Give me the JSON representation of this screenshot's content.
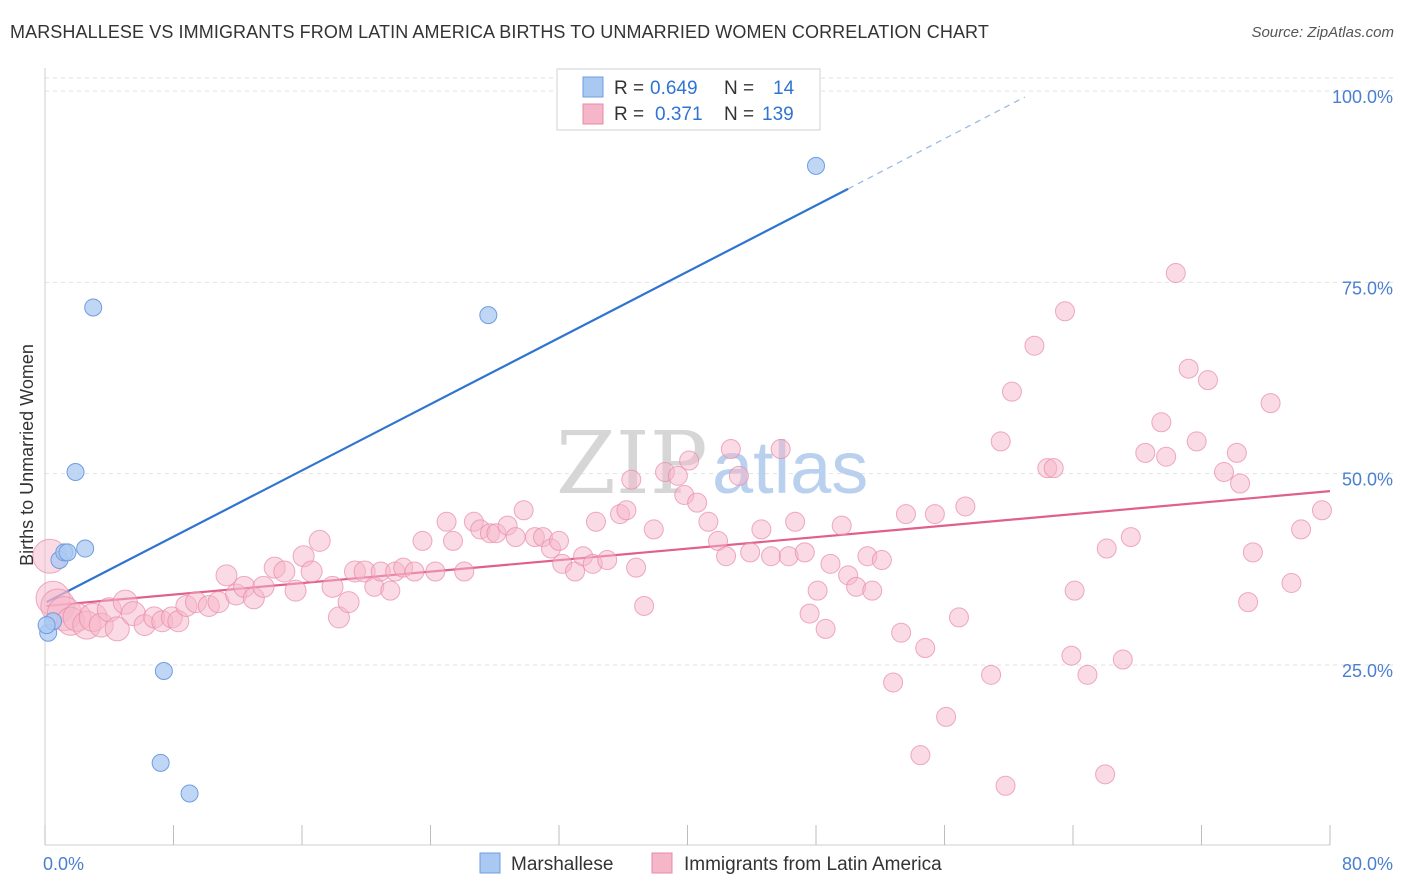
{
  "title": "MARSHALLESE VS IMMIGRANTS FROM LATIN AMERICA BIRTHS TO UNMARRIED WOMEN CORRELATION CHART",
  "source": "Source: ZipAtlas.com",
  "watermark": {
    "zip": "ZIP",
    "atlas": "atlas"
  },
  "colors": {
    "blue": "#a9c8f2",
    "blue_stroke": "#6f9de0",
    "blue_line": "#2f74d0",
    "pink": "#f5b6c9",
    "pink_stroke": "#e889a8",
    "pink_line": "#e0608c",
    "tick": "#4a7fd0"
  },
  "stats_legend": [
    {
      "r_label": "R =",
      "r": "0.649",
      "n_label": "N =",
      "n": "14"
    },
    {
      "r_label": "R =",
      "r": "0.371",
      "n_label": "N =",
      "n": "139"
    }
  ],
  "chart_data": {
    "type": "scatter",
    "title": "MARSHALLESE VS IMMIGRANTS FROM LATIN AMERICA BIRTHS TO UNMARRIED WOMEN CORRELATION CHART",
    "xlabel": "",
    "ylabel": "Births to Unmarried Women",
    "xlim": [
      0,
      80
    ],
    "ylim": [
      0,
      105
    ],
    "x_tick_labels": [
      "0.0%",
      "80.0%"
    ],
    "y_ticks": [
      25,
      50,
      75,
      100
    ],
    "y_tick_labels": [
      "25.0%",
      "50.0%",
      "75.0%",
      "100.0%"
    ],
    "grid": true,
    "legend_position": "bottom-center",
    "series": [
      {
        "name": "Marshallese",
        "color": "#a9c8f2",
        "points": [
          [
            0.2,
            30.0
          ],
          [
            0.5,
            31.5
          ],
          [
            0.9,
            39.5
          ],
          [
            1.2,
            40.5
          ],
          [
            1.4,
            40.5
          ],
          [
            1.9,
            51.0
          ],
          [
            2.5,
            41.0
          ],
          [
            3.0,
            72.5
          ],
          [
            7.2,
            13.0
          ],
          [
            7.4,
            25.0
          ],
          [
            9.0,
            9.0
          ],
          [
            27.6,
            71.5
          ],
          [
            48.0,
            91.0
          ],
          [
            0.1,
            31.0
          ]
        ],
        "trend": {
          "x0": 0.1,
          "y0": 34.0,
          "x1": 50.0,
          "y1": 88.0,
          "dash_to_x": 61.0,
          "dash_to_y": 100.0
        }
      },
      {
        "name": "Immigrants from Latin America",
        "color": "#f5b6c9",
        "points": [
          [
            0.3,
            40.0
          ],
          [
            0.5,
            34.5
          ],
          [
            0.8,
            33.5
          ],
          [
            1.2,
            32.5
          ],
          [
            1.6,
            31.5
          ],
          [
            2.0,
            32.0
          ],
          [
            2.6,
            31.0
          ],
          [
            3.0,
            32.0
          ],
          [
            3.5,
            31.0
          ],
          [
            4.0,
            33.0
          ],
          [
            4.5,
            30.5
          ],
          [
            5.0,
            34.0
          ],
          [
            5.5,
            32.5
          ],
          [
            6.2,
            31.0
          ],
          [
            6.8,
            32.0
          ],
          [
            7.3,
            31.5
          ],
          [
            7.9,
            32.0
          ],
          [
            8.3,
            31.5
          ],
          [
            8.8,
            33.5
          ],
          [
            9.4,
            34.0
          ],
          [
            10.2,
            33.5
          ],
          [
            10.8,
            34.0
          ],
          [
            11.3,
            37.5
          ],
          [
            11.9,
            35.0
          ],
          [
            12.4,
            36.0
          ],
          [
            13.0,
            34.5
          ],
          [
            13.6,
            36.0
          ],
          [
            14.3,
            38.5
          ],
          [
            14.9,
            38.0
          ],
          [
            15.6,
            35.5
          ],
          [
            16.1,
            40.0
          ],
          [
            16.6,
            38.0
          ],
          [
            17.1,
            42.0
          ],
          [
            17.9,
            36.0
          ],
          [
            18.3,
            32.0
          ],
          [
            18.9,
            34.0
          ],
          [
            19.3,
            38.0
          ],
          [
            19.9,
            38.0
          ],
          [
            20.5,
            36.0
          ],
          [
            20.9,
            38.0
          ],
          [
            21.5,
            35.5
          ],
          [
            21.8,
            38.0
          ],
          [
            22.3,
            38.5
          ],
          [
            23.0,
            38.0
          ],
          [
            23.5,
            42.0
          ],
          [
            24.3,
            38.0
          ],
          [
            25.0,
            44.5
          ],
          [
            25.4,
            42.0
          ],
          [
            26.1,
            38.0
          ],
          [
            26.7,
            44.5
          ],
          [
            27.1,
            43.5
          ],
          [
            27.7,
            43.0
          ],
          [
            28.1,
            43.0
          ],
          [
            28.8,
            44.0
          ],
          [
            29.3,
            42.5
          ],
          [
            29.8,
            46.0
          ],
          [
            30.5,
            42.5
          ],
          [
            31.0,
            42.5
          ],
          [
            31.5,
            41.0
          ],
          [
            32.0,
            42.0
          ],
          [
            32.2,
            39.0
          ],
          [
            33.0,
            38.0
          ],
          [
            33.5,
            40.0
          ],
          [
            34.1,
            39.0
          ],
          [
            34.3,
            44.5
          ],
          [
            35.0,
            39.5
          ],
          [
            35.8,
            45.5
          ],
          [
            36.2,
            46.0
          ],
          [
            36.5,
            50.0
          ],
          [
            36.8,
            38.5
          ],
          [
            37.3,
            33.5
          ],
          [
            37.9,
            43.5
          ],
          [
            38.6,
            51.0
          ],
          [
            39.4,
            50.5
          ],
          [
            39.8,
            48.0
          ],
          [
            40.1,
            52.5
          ],
          [
            40.6,
            47.0
          ],
          [
            41.3,
            44.5
          ],
          [
            41.9,
            42.0
          ],
          [
            42.4,
            40.0
          ],
          [
            42.7,
            54.0
          ],
          [
            43.2,
            50.5
          ],
          [
            43.9,
            40.5
          ],
          [
            44.6,
            43.5
          ],
          [
            45.2,
            40.0
          ],
          [
            45.8,
            54.0
          ],
          [
            46.3,
            40.0
          ],
          [
            46.7,
            44.5
          ],
          [
            47.3,
            40.5
          ],
          [
            47.6,
            32.5
          ],
          [
            48.1,
            35.5
          ],
          [
            48.6,
            30.5
          ],
          [
            48.9,
            39.0
          ],
          [
            49.6,
            44.0
          ],
          [
            50.0,
            37.5
          ],
          [
            50.5,
            36.0
          ],
          [
            51.2,
            40.0
          ],
          [
            51.5,
            35.5
          ],
          [
            52.1,
            39.5
          ],
          [
            52.8,
            23.5
          ],
          [
            53.3,
            30.0
          ],
          [
            53.6,
            45.5
          ],
          [
            54.8,
            28.0
          ],
          [
            54.5,
            14.0
          ],
          [
            55.4,
            45.5
          ],
          [
            56.1,
            19.0
          ],
          [
            56.9,
            32.0
          ],
          [
            57.3,
            46.5
          ],
          [
            58.9,
            24.5
          ],
          [
            59.5,
            55.0
          ],
          [
            59.8,
            10.0
          ],
          [
            60.2,
            61.5
          ],
          [
            61.6,
            67.5
          ],
          [
            62.4,
            51.5
          ],
          [
            62.8,
            51.5
          ],
          [
            63.5,
            72.0
          ],
          [
            63.9,
            27.0
          ],
          [
            64.1,
            35.5
          ],
          [
            64.9,
            24.5
          ],
          [
            66.0,
            11.5
          ],
          [
            66.1,
            41.0
          ],
          [
            67.1,
            26.5
          ],
          [
            67.6,
            42.5
          ],
          [
            68.5,
            53.5
          ],
          [
            69.5,
            57.5
          ],
          [
            69.8,
            53.0
          ],
          [
            70.4,
            77.0
          ],
          [
            71.2,
            64.5
          ],
          [
            71.7,
            55.0
          ],
          [
            72.4,
            63.0
          ],
          [
            73.4,
            51.0
          ],
          [
            74.2,
            53.5
          ],
          [
            74.4,
            49.5
          ],
          [
            74.9,
            34.0
          ],
          [
            75.2,
            40.5
          ],
          [
            76.3,
            60.0
          ],
          [
            77.6,
            36.5
          ],
          [
            78.2,
            43.5
          ],
          [
            79.5,
            46.0
          ]
        ],
        "trend": {
          "x0": 0.1,
          "y0": 33.5,
          "x1": 80.0,
          "y1": 48.5
        }
      }
    ]
  }
}
